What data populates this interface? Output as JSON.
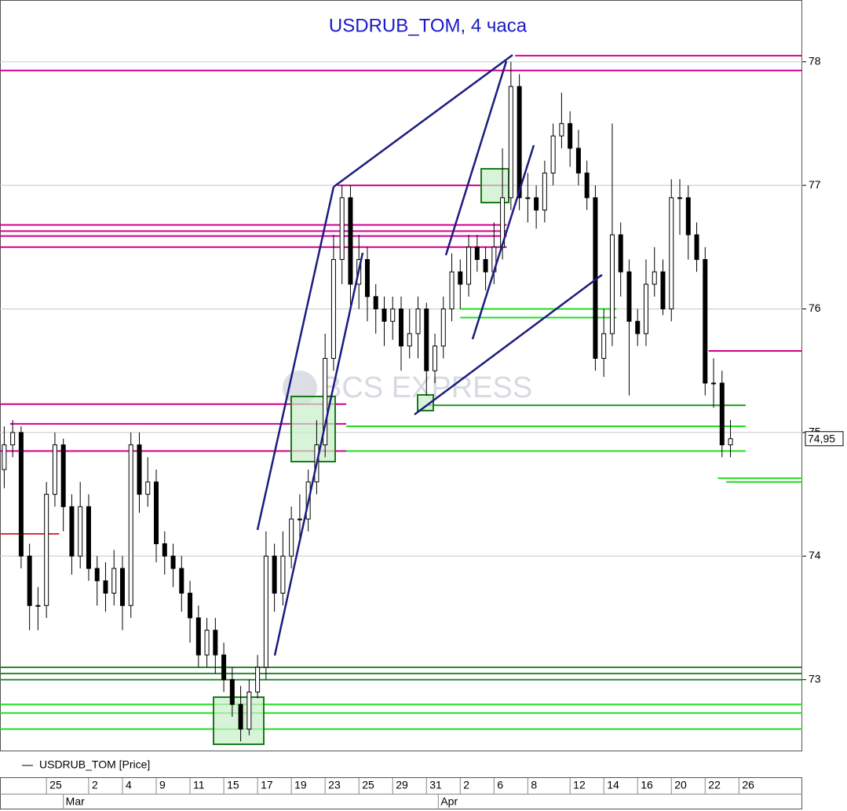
{
  "chart_data": {
    "type": "candlestick",
    "title": "USDRUB_TOM, 4 часа",
    "watermark": "BCS EXPRESS",
    "series": [
      {
        "name": "USDRUB_TOM [Price]",
        "color": "#000000",
        "open": [
          74.7,
          74.9,
          75.0,
          74.0,
          73.6,
          73.6,
          74.5,
          74.9,
          74.4,
          74.0,
          74.4,
          73.9,
          73.8,
          73.7,
          73.9,
          73.6,
          74.9,
          74.5,
          74.6,
          74.1,
          74.0,
          73.9,
          73.7,
          73.5,
          73.2,
          73.4,
          73.2,
          73.0,
          72.8,
          72.6,
          72.9,
          73.1,
          74.0,
          73.7,
          74.0,
          74.3,
          74.3,
          74.6,
          74.9,
          75.6,
          76.4,
          76.9,
          76.2,
          76.4,
          76.1,
          76.0,
          75.9,
          76.0,
          75.7,
          75.8,
          76.0,
          75.5,
          75.7,
          76.0,
          76.3,
          76.2,
          76.5,
          76.4,
          76.3,
          76.5,
          76.9,
          77.8,
          76.9,
          76.9,
          76.8,
          77.1,
          77.4,
          77.5,
          77.3,
          77.1,
          76.9,
          75.6,
          75.8,
          76.6,
          76.3,
          75.9,
          75.8,
          76.2,
          76.3,
          76.0,
          76.9,
          76.9,
          76.6,
          76.4,
          75.4,
          75.4,
          74.9
        ],
        "high": [
          75.05,
          75.1,
          75.05,
          74.1,
          73.75,
          74.6,
          75.0,
          74.95,
          74.5,
          74.6,
          74.5,
          74.0,
          73.95,
          74.05,
          74.0,
          75.0,
          75.0,
          74.8,
          74.7,
          74.2,
          74.1,
          74.0,
          73.8,
          73.6,
          73.5,
          73.5,
          73.3,
          73.1,
          72.95,
          73.0,
          73.2,
          74.2,
          74.1,
          74.2,
          74.4,
          74.5,
          74.7,
          75.1,
          75.8,
          76.6,
          77.0,
          77.0,
          76.6,
          76.5,
          76.2,
          76.1,
          76.1,
          76.1,
          76.0,
          76.1,
          76.05,
          75.8,
          76.1,
          76.45,
          76.4,
          76.6,
          76.6,
          76.5,
          76.7,
          77.3,
          78.0,
          77.9,
          77.1,
          77.0,
          77.2,
          77.5,
          77.75,
          77.6,
          77.45,
          77.2,
          77.0,
          76.0,
          77.5,
          76.7,
          76.4,
          76.0,
          76.4,
          76.5,
          76.4,
          77.05,
          77.05,
          77.0,
          76.7,
          76.5,
          75.6,
          75.5,
          75.1
        ],
        "low": [
          74.55,
          74.8,
          73.9,
          73.4,
          73.4,
          73.5,
          74.4,
          74.2,
          73.85,
          73.9,
          73.8,
          73.6,
          73.55,
          73.6,
          73.4,
          73.5,
          74.35,
          74.4,
          73.95,
          73.85,
          73.75,
          73.55,
          73.3,
          73.1,
          73.1,
          73.05,
          72.9,
          72.7,
          72.5,
          72.55,
          72.85,
          73.0,
          73.55,
          73.6,
          73.9,
          74.1,
          74.2,
          74.5,
          74.8,
          75.5,
          76.2,
          76.0,
          76.0,
          75.9,
          75.8,
          75.7,
          75.75,
          75.5,
          75.6,
          75.6,
          75.3,
          75.4,
          75.6,
          75.9,
          76.0,
          76.1,
          76.3,
          76.15,
          76.2,
          76.4,
          76.8,
          76.8,
          76.7,
          76.65,
          76.7,
          77.0,
          77.3,
          77.15,
          77.0,
          76.8,
          75.5,
          75.45,
          75.7,
          76.1,
          75.3,
          75.7,
          75.7,
          76.1,
          75.95,
          75.9,
          76.6,
          76.4,
          76.3,
          75.3,
          75.2,
          74.8,
          74.8
        ],
        "close": [
          74.9,
          75.0,
          74.0,
          73.6,
          73.6,
          74.5,
          74.9,
          74.4,
          74.0,
          74.4,
          73.9,
          73.8,
          73.7,
          73.9,
          73.6,
          74.9,
          74.5,
          74.6,
          74.1,
          74.0,
          73.9,
          73.7,
          73.5,
          73.2,
          73.4,
          73.2,
          73.0,
          72.8,
          72.6,
          72.9,
          73.1,
          74.0,
          73.7,
          74.0,
          74.3,
          74.3,
          74.6,
          74.9,
          75.6,
          76.4,
          76.9,
          76.2,
          76.4,
          76.1,
          76.0,
          75.9,
          76.0,
          75.7,
          75.8,
          76.0,
          75.5,
          75.7,
          76.0,
          76.3,
          76.2,
          76.5,
          76.4,
          76.3,
          76.5,
          76.9,
          77.8,
          76.9,
          76.9,
          76.8,
          77.1,
          77.4,
          77.5,
          77.3,
          77.1,
          76.9,
          75.6,
          75.8,
          76.6,
          76.3,
          75.9,
          75.8,
          76.2,
          76.3,
          76.0,
          76.9,
          76.9,
          76.6,
          76.4,
          75.4,
          75.4,
          74.9,
          74.95
        ]
      }
    ],
    "last_price": {
      "value": 74.95,
      "label": "74,95"
    },
    "xlim": [
      -0.5,
      94.5
    ],
    "xticks": [
      {
        "value": 5,
        "label": "25"
      },
      {
        "value": 10,
        "label": "2"
      },
      {
        "value": 14,
        "label": "4"
      },
      {
        "value": 18,
        "label": "9"
      },
      {
        "value": 22,
        "label": "11"
      },
      {
        "value": 26,
        "label": "15"
      },
      {
        "value": 30,
        "label": "17"
      },
      {
        "value": 34,
        "label": "19"
      },
      {
        "value": 38,
        "label": "23"
      },
      {
        "value": 42,
        "label": "25"
      },
      {
        "value": 46,
        "label": "29"
      },
      {
        "value": 50,
        "label": "31"
      },
      {
        "value": 54,
        "label": "2"
      },
      {
        "value": 58,
        "label": "6"
      },
      {
        "value": 62,
        "label": "8"
      },
      {
        "value": 67,
        "label": "12"
      },
      {
        "value": 71,
        "label": "14"
      },
      {
        "value": 75,
        "label": "16"
      },
      {
        "value": 79,
        "label": "20"
      },
      {
        "value": 83,
        "label": "22"
      },
      {
        "value": 87,
        "label": "26"
      }
    ],
    "months": [
      {
        "value": 7,
        "label": "Mar"
      },
      {
        "value": 51.4,
        "label": "Apr"
      }
    ],
    "ylim": [
      72.42,
      78.5
    ],
    "yticks": [
      73,
      74,
      75,
      76,
      77,
      78
    ],
    "grid": true,
    "levels": [
      {
        "value": 78.05,
        "color": "#d4008f",
        "from": 60.5,
        "to": 94.5
      },
      {
        "value": 77.93,
        "color": "#d4008f",
        "from": -0.5,
        "to": 94.5
      },
      {
        "value": 77.0,
        "color": "#d4008f",
        "from": 39.5,
        "to": 60
      },
      {
        "value": 76.68,
        "color": "#d4008f",
        "from": -0.5,
        "to": 59.5
      },
      {
        "value": 76.63,
        "color": "#d4008f",
        "from": -0.5,
        "to": 59.5
      },
      {
        "value": 76.59,
        "color": "#d4008f",
        "from": -0.5,
        "to": 59.5
      },
      {
        "value": 76.5,
        "color": "#d4008f",
        "from": -0.5,
        "to": 59.5
      },
      {
        "value": 75.66,
        "color": "#d4008f",
        "from": 83.4,
        "to": 94.5
      },
      {
        "value": 75.23,
        "color": "#d4008f",
        "from": -0.5,
        "to": 40.5
      },
      {
        "value": 75.07,
        "color": "#d4008f",
        "from": 0.7,
        "to": 40.5
      },
      {
        "value": 74.85,
        "color": "#d4008f",
        "from": -0.5,
        "to": 40.5
      },
      {
        "value": 74.18,
        "color": "#e03030",
        "from": -0.5,
        "to": 6.5
      },
      {
        "value": 75.22,
        "color": "#1a9a1a",
        "from": 50,
        "to": 87.8
      },
      {
        "value": 75.05,
        "color": "#22dd22",
        "from": 40.5,
        "to": 87.8
      },
      {
        "value": 74.85,
        "color": "#22dd22",
        "from": 40.5,
        "to": 87.8
      },
      {
        "value": 76.0,
        "color": "#22dd22",
        "from": 54,
        "to": 72.5
      },
      {
        "value": 75.93,
        "color": "#22dd22",
        "from": 54,
        "to": 72.5
      },
      {
        "value": 74.63,
        "color": "#22dd22",
        "from": 84.5,
        "to": 94.5
      },
      {
        "value": 74.6,
        "color": "#22dd22",
        "from": 85.5,
        "to": 94.5
      },
      {
        "value": 73.1,
        "color": "#2a8a2a",
        "from": -0.5,
        "to": 94.5
      },
      {
        "value": 73.05,
        "color": "#2a8a2a",
        "from": -0.5,
        "to": 94.5
      },
      {
        "value": 73.0,
        "color": "#2a8a2a",
        "from": -0.5,
        "to": 94.5
      },
      {
        "value": 72.8,
        "color": "#22dd22",
        "from": -0.5,
        "to": 94.5
      },
      {
        "value": 72.73,
        "color": "#22dd22",
        "from": -0.5,
        "to": 94.5
      },
      {
        "value": 72.6,
        "color": "#22dd22",
        "from": -0.5,
        "to": 94.5
      }
    ]
  }
}
